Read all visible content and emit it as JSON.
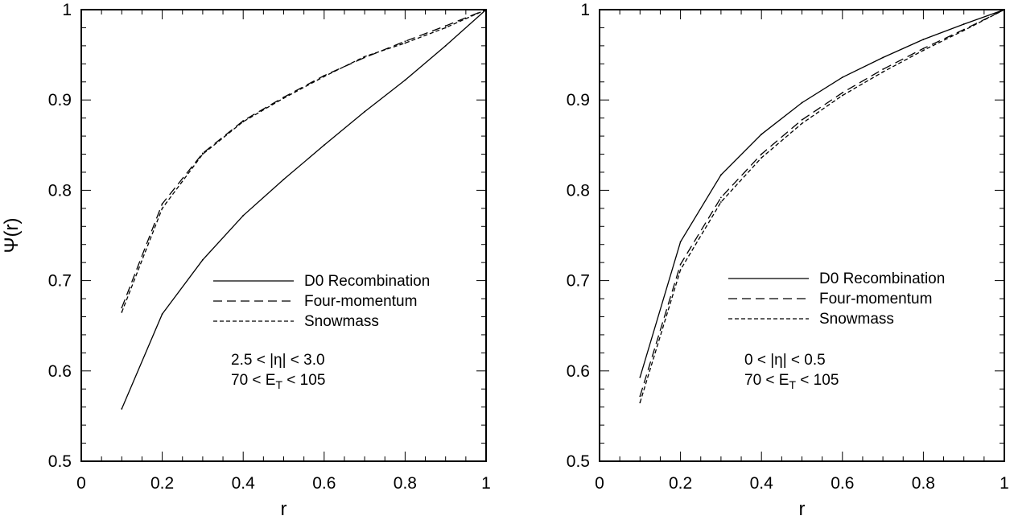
{
  "chart_data": [
    {
      "type": "line",
      "xlabel": "r",
      "ylabel": "Ψ(r)",
      "xlim": [
        0,
        1
      ],
      "ylim": [
        0.5,
        1
      ],
      "x_ticks": [
        "0",
        "0.2",
        "0.4",
        "0.6",
        "0.8",
        "1"
      ],
      "y_ticks": [
        "0.5",
        "0.6",
        "0.7",
        "0.8",
        "0.9",
        "1"
      ],
      "grid": false,
      "legend_position": "center-right",
      "series": [
        {
          "name": "D0 Recombination",
          "style": "solid",
          "x": [
            0.1,
            0.2,
            0.3,
            0.4,
            0.5,
            0.6,
            0.7,
            0.8,
            0.9,
            1.0
          ],
          "y": [
            0.558,
            0.663,
            0.723,
            0.772,
            0.812,
            0.85,
            0.887,
            0.922,
            0.96,
            1.0
          ]
        },
        {
          "name": "Four-momentum",
          "style": "dashed",
          "x": [
            0.1,
            0.2,
            0.3,
            0.4,
            0.5,
            0.6,
            0.7,
            0.8,
            0.9,
            1.0
          ],
          "y": [
            0.67,
            0.785,
            0.841,
            0.877,
            0.903,
            0.927,
            0.947,
            0.965,
            0.982,
            1.0
          ]
        },
        {
          "name": "Snowmass",
          "style": "dotted",
          "x": [
            0.1,
            0.2,
            0.3,
            0.4,
            0.5,
            0.6,
            0.7,
            0.8,
            0.9,
            1.0
          ],
          "y": [
            0.665,
            0.78,
            0.84,
            0.876,
            0.902,
            0.926,
            0.948,
            0.963,
            0.98,
            1.0
          ]
        }
      ],
      "annotations": [
        "2.5 < |η| < 3.0",
        "70 < E",
        "T",
        " < 105"
      ]
    },
    {
      "type": "line",
      "xlabel": "r",
      "ylabel": "",
      "xlim": [
        0,
        1
      ],
      "ylim": [
        0.5,
        1
      ],
      "x_ticks": [
        "0",
        "0.2",
        "0.4",
        "0.6",
        "0.8",
        "1"
      ],
      "y_ticks": [
        "0.5",
        "0.6",
        "0.7",
        "0.8",
        "0.9",
        "1"
      ],
      "grid": false,
      "legend_position": "center-right",
      "series": [
        {
          "name": "D0 Recombination",
          "style": "solid",
          "x": [
            0.1,
            0.2,
            0.3,
            0.4,
            0.5,
            0.6,
            0.7,
            0.8,
            0.9,
            1.0
          ],
          "y": [
            0.593,
            0.743,
            0.817,
            0.862,
            0.897,
            0.925,
            0.947,
            0.967,
            0.984,
            1.0
          ]
        },
        {
          "name": "Four-momentum",
          "style": "dashed",
          "x": [
            0.1,
            0.2,
            0.3,
            0.4,
            0.5,
            0.6,
            0.7,
            0.8,
            0.9,
            1.0
          ],
          "y": [
            0.572,
            0.718,
            0.792,
            0.84,
            0.878,
            0.908,
            0.934,
            0.957,
            0.978,
            1.0
          ]
        },
        {
          "name": "Snowmass",
          "style": "dotted",
          "x": [
            0.1,
            0.2,
            0.3,
            0.4,
            0.5,
            0.6,
            0.7,
            0.8,
            0.9,
            1.0
          ],
          "y": [
            0.565,
            0.712,
            0.787,
            0.836,
            0.874,
            0.905,
            0.931,
            0.955,
            0.977,
            1.0
          ]
        }
      ],
      "annotations": [
        "0 < |η| < 0.5",
        "70 < E",
        "T",
        " < 105"
      ]
    }
  ]
}
